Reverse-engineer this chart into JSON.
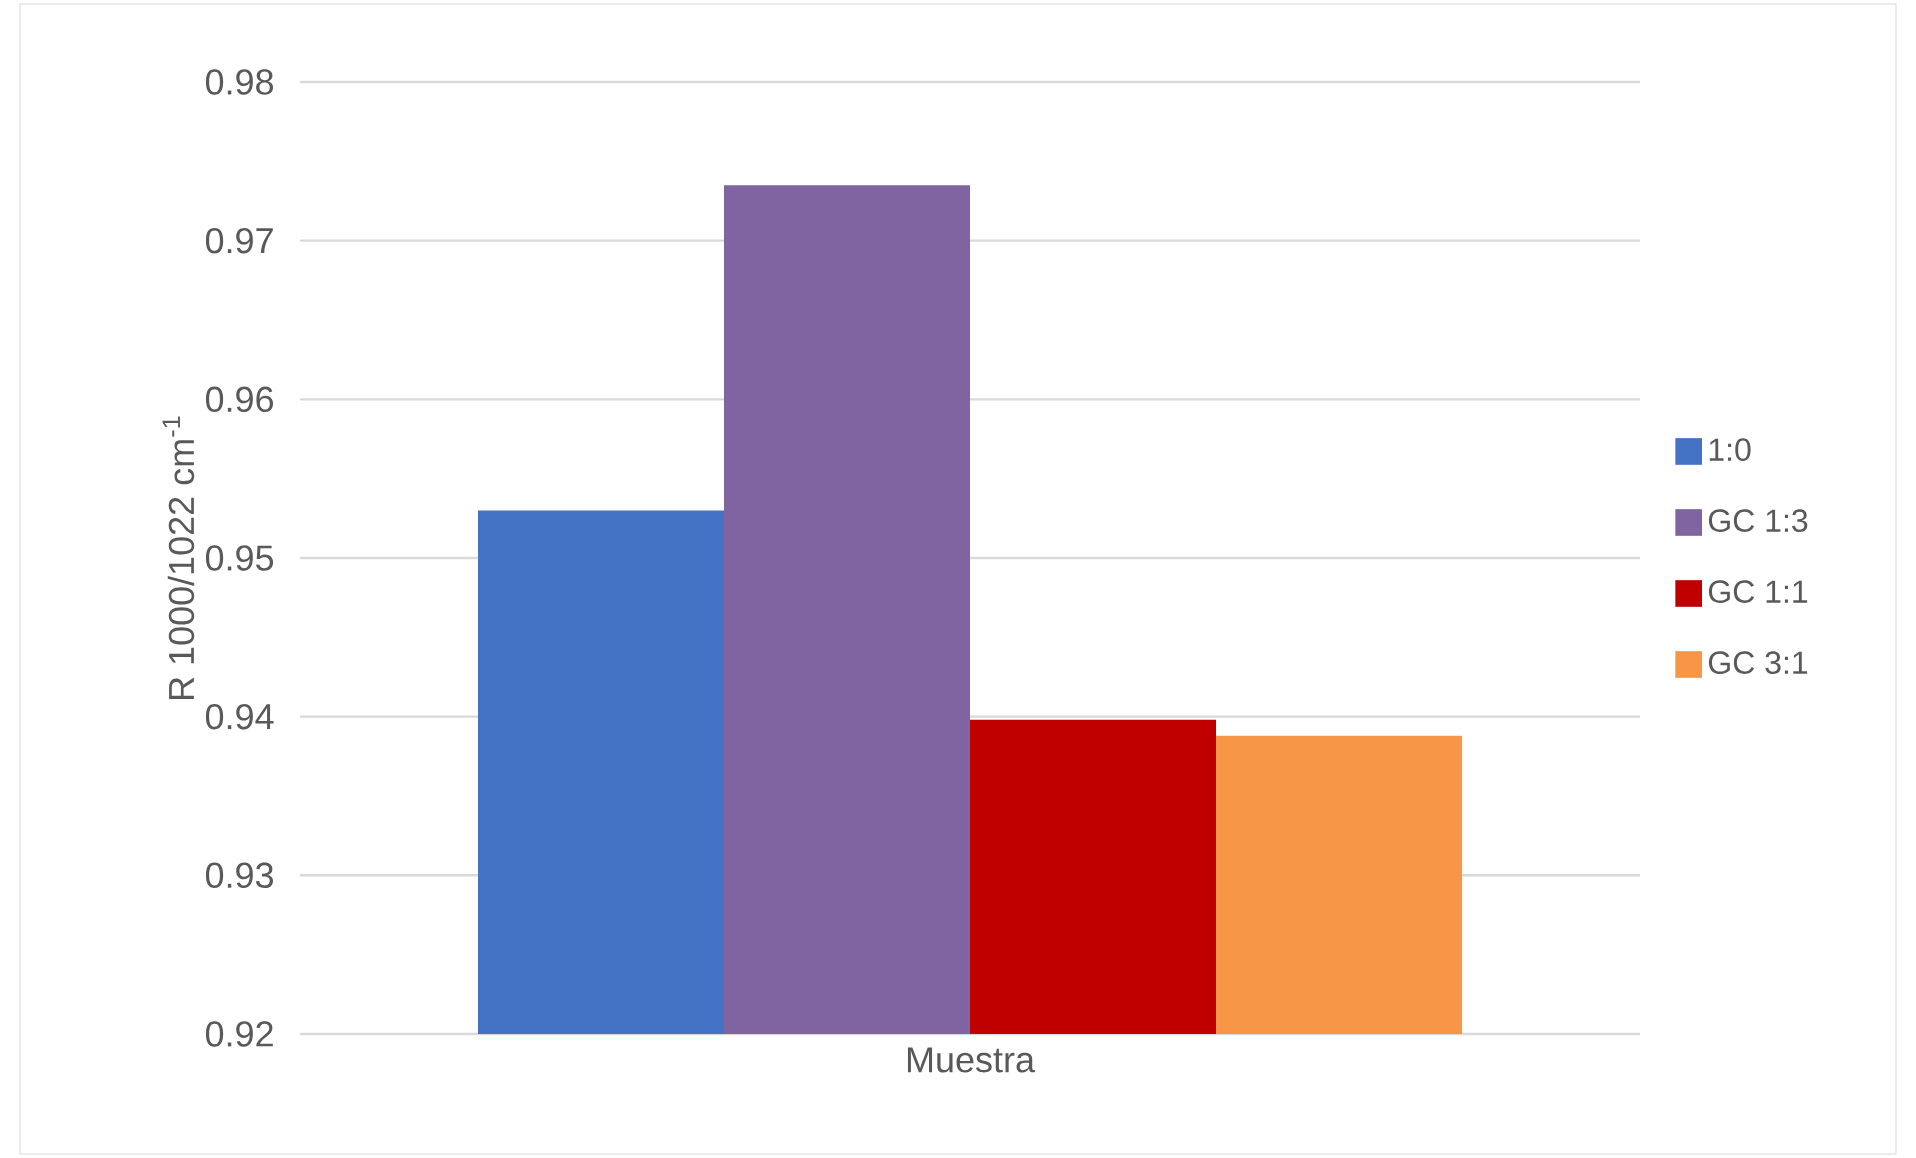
{
  "chart_data": {
    "type": "bar",
    "ylabel": "R 1000/1022 cm$^{-1}$",
    "categories": [
      "Muestra"
    ],
    "series": [
      {
        "name": "1:0",
        "color": "#4472c4",
        "values": [
          0.953
        ]
      },
      {
        "name": "GC 1:3",
        "color": "#8064a2",
        "values": [
          0.9735
        ]
      },
      {
        "name": "GC 1:1",
        "color": "#c00000",
        "values": [
          0.9398
        ]
      },
      {
        "name": "GC 3:1",
        "color": "#f79646",
        "values": [
          0.9388
        ]
      }
    ],
    "ylim": [
      0.92,
      0.98
    ],
    "yticks": [
      0.92,
      0.93,
      0.94,
      0.95,
      0.96,
      0.97,
      0.98
    ],
    "grid": "y",
    "legend": "right"
  }
}
